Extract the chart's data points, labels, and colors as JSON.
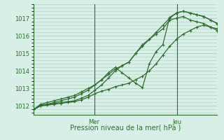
{
  "xlabel": "Pression niveau de la mer( hPa )",
  "background_color": "#d8efe8",
  "grid_color": "#aacfbb",
  "line_color": "#2d6e2d",
  "ylim": [
    1011.5,
    1017.8
  ],
  "yticks": [
    1012,
    1013,
    1014,
    1015,
    1016,
    1017
  ],
  "xlim": [
    0,
    1
  ],
  "vlines": [
    0.33,
    0.78
  ],
  "vline_labels": [
    "Mer",
    "Jeu"
  ],
  "series": [
    [
      1011.8,
      1012.1,
      1012.2,
      1012.3,
      1012.4,
      1012.5,
      1012.6,
      1012.8,
      1013.0,
      1013.2,
      1013.5,
      1013.8,
      1014.1,
      1014.3,
      1014.5,
      1015.0,
      1015.4,
      1015.8,
      1016.2,
      1016.6,
      1017.0,
      1017.3,
      1017.4,
      1017.3,
      1017.2,
      1017.1,
      1016.9,
      1016.7
    ],
    [
      1011.8,
      1012.0,
      1012.1,
      1012.2,
      1012.3,
      1012.4,
      1012.5,
      1012.7,
      1012.9,
      1013.2,
      1013.5,
      1013.9,
      1014.2,
      1013.9,
      1013.6,
      1013.3,
      1013.05,
      1014.4,
      1015.1,
      1015.5,
      1017.05,
      1017.3,
      1017.4,
      1017.3,
      1017.2,
      1017.1,
      1016.9,
      1016.7
    ],
    [
      1011.8,
      1012.05,
      1012.1,
      1012.15,
      1012.2,
      1012.25,
      1012.3,
      1012.45,
      1012.6,
      1012.9,
      1013.2,
      1013.6,
      1014.0,
      1014.3,
      1014.5,
      1015.0,
      1015.5,
      1015.8,
      1016.1,
      1016.4,
      1016.9,
      1017.0,
      1017.1,
      1016.9,
      1016.8,
      1016.7,
      1016.5,
      1016.3
    ],
    [
      1011.8,
      1012.0,
      1012.05,
      1012.1,
      1012.15,
      1012.2,
      1012.25,
      1012.35,
      1012.5,
      1012.7,
      1012.85,
      1012.95,
      1013.1,
      1013.2,
      1013.3,
      1013.5,
      1013.7,
      1014.0,
      1014.4,
      1014.9,
      1015.4,
      1015.8,
      1016.1,
      1016.3,
      1016.5,
      1016.6,
      1016.5,
      1016.4
    ]
  ]
}
